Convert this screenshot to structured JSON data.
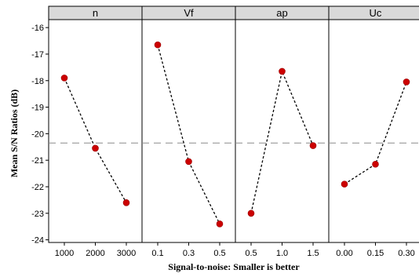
{
  "chart_data": {
    "type": "line",
    "ylabel": "Mean S/N Ratios (dB)",
    "xlabel": "Signal-to-noise: Smaller is better",
    "ylim": [
      -24.1,
      -15.7
    ],
    "yticks": [
      -16,
      -17,
      -18,
      -19,
      -20,
      -21,
      -22,
      -23,
      -24
    ],
    "ytick_labels": [
      "-16",
      "-17",
      "-18",
      "-19",
      "-20",
      "-21",
      "-22",
      "-23",
      "-24"
    ],
    "reference_line": -20.35,
    "grid": false,
    "point_color": "#cc0000",
    "line_color": "#000000",
    "panels": [
      {
        "name": "n",
        "categories": [
          "1000",
          "2000",
          "3000"
        ],
        "values": [
          -17.9,
          -20.55,
          -22.6
        ]
      },
      {
        "name": "Vf",
        "categories": [
          "0.1",
          "0.3",
          "0.5"
        ],
        "values": [
          -16.65,
          -21.05,
          -23.4
        ]
      },
      {
        "name": "ap",
        "categories": [
          "0.5",
          "1.0",
          "1.5"
        ],
        "values": [
          -23.0,
          -17.65,
          -20.45
        ]
      },
      {
        "name": "Uc",
        "categories": [
          "0.00",
          "0.15",
          "0.30"
        ],
        "values": [
          -21.9,
          -21.15,
          -18.05
        ]
      }
    ]
  }
}
